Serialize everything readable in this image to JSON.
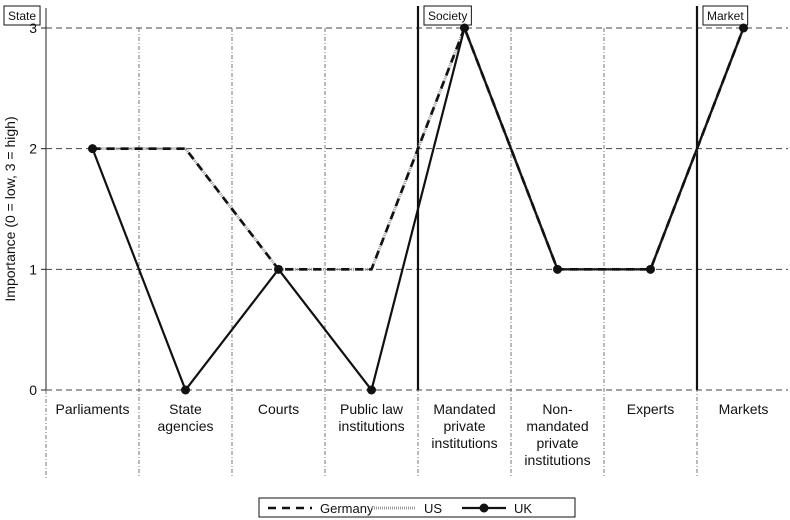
{
  "chart_data": {
    "type": "line",
    "title": "",
    "ylabel": "Importance (0 = low, 3 = high)",
    "xlabel": "",
    "ylim": [
      0,
      3
    ],
    "yticks": [
      0,
      1,
      2,
      3
    ],
    "grid": true,
    "categories": [
      [
        "Parliaments"
      ],
      [
        "State",
        "agencies"
      ],
      [
        "Courts"
      ],
      [
        "Public law",
        "institutions"
      ],
      [
        "Mandated",
        "private",
        "institutions"
      ],
      [
        "Non-",
        "mandated",
        "private",
        "institutions"
      ],
      [
        "Experts"
      ],
      [
        "Markets"
      ]
    ],
    "sections": [
      {
        "label": "State",
        "start": 0
      },
      {
        "label": "Society",
        "start": 4
      },
      {
        "label": "Market",
        "start": 7
      }
    ],
    "series": [
      {
        "name": "Germany",
        "style": "dashed",
        "values": [
          2,
          2,
          1,
          1,
          3,
          1,
          1,
          3
        ]
      },
      {
        "name": "US",
        "style": "dotted",
        "values": [
          2,
          2,
          1,
          1,
          3,
          1,
          1,
          3
        ]
      },
      {
        "name": "UK",
        "style": "solid-markers",
        "values": [
          2,
          0,
          1,
          0,
          3,
          1,
          1,
          3
        ]
      }
    ],
    "legend_position": "bottom-center"
  }
}
